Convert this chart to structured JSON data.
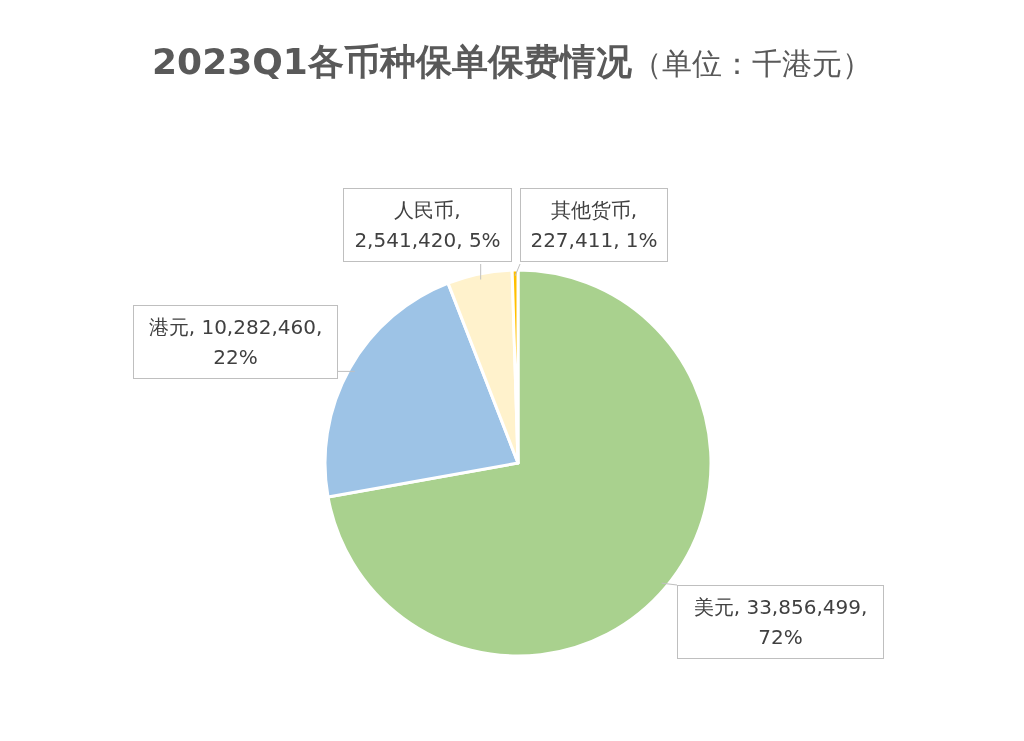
{
  "chart_data": {
    "type": "pie",
    "title": "**2023Q1各币种保单保费情况**（单位：千港元）",
    "categories": [
      "美元",
      "港元",
      "人民币",
      "其他货币"
    ],
    "values": [
      33856499,
      10282460,
      2541420,
      227411
    ],
    "colors": [
      "#a9d18e",
      "#9dc3e6",
      "#fff2cc",
      "#ffc000"
    ],
    "value_labels": [
      ", 33,856,499, 72%",
      ", 10,282,460, 22%",
      ", 2,541,420, 5%",
      ", 227,411, 1%"
    ]
  }
}
